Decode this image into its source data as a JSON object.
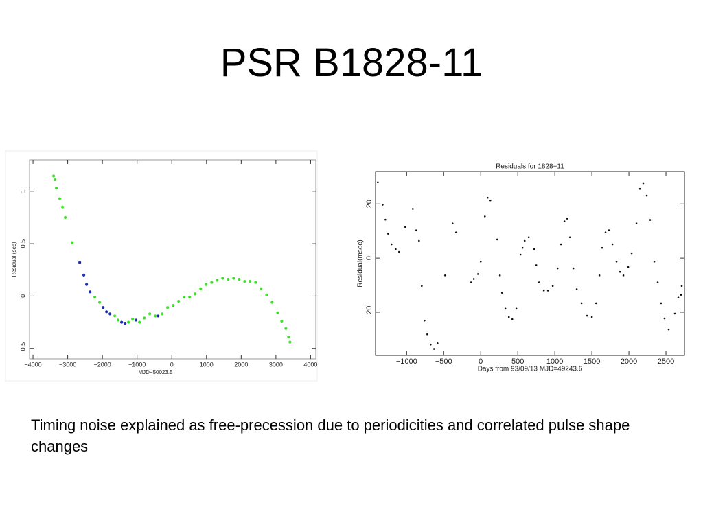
{
  "slide": {
    "title": "PSR B1828-11",
    "caption": "Timing noise explained as free-precession due to periodicities and correlated pulse shape changes"
  },
  "chart_data": [
    {
      "type": "scatter",
      "x_label": "MJD−50023.5",
      "y_label": "Residual (sec)",
      "xlim": [
        -4100,
        4150
      ],
      "ylim": [
        -0.6,
        1.3
      ],
      "xticks": [
        {
          "value": -4000,
          "label": "−4000"
        },
        {
          "value": -3000,
          "label": "−3000"
        },
        {
          "value": -2000,
          "label": "−2000"
        },
        {
          "value": -1000,
          "label": "−1000"
        },
        0,
        1000,
        2000,
        3000,
        4000
      ],
      "yticks": [
        {
          "value": -0.5,
          "label": "−0.5"
        },
        0,
        0.5,
        1
      ],
      "grid": false,
      "series": [
        {
          "color": "#3fe22a",
          "x": [
            -3406,
            -3366,
            -3327,
            -3228,
            -3149,
            -3069,
            -2871,
            -2218,
            -2079,
            -1644,
            -1545,
            -1248,
            -1129,
            -931,
            -792,
            -634,
            -475,
            -277,
            -119,
            40,
            198,
            356,
            515,
            673,
            832,
            990,
            1149,
            1307,
            1465,
            1624,
            1782,
            1941,
            2099,
            2257,
            2416,
            2574,
            2733,
            2891,
            3050,
            3168,
            3287,
            3366,
            3406
          ],
          "values": [
            1.146,
            1.11,
            1.03,
            0.93,
            0.85,
            0.75,
            0.51,
            -0.01,
            -0.06,
            -0.19,
            -0.23,
            -0.25,
            -0.22,
            -0.25,
            -0.21,
            -0.17,
            -0.19,
            -0.17,
            -0.11,
            -0.09,
            -0.05,
            -0.01,
            -0.01,
            0.02,
            0.07,
            0.11,
            0.13,
            0.15,
            0.17,
            0.16,
            0.17,
            0.16,
            0.14,
            0.14,
            0.13,
            0.07,
            0.01,
            -0.06,
            -0.16,
            -0.24,
            -0.31,
            -0.39,
            -0.44
          ]
        },
        {
          "color": "#1a2fb0",
          "x": [
            -2653,
            -2535,
            -2455,
            -2356,
            -1980,
            -1881,
            -1782,
            -1446,
            -1347,
            -1030,
            -396
          ],
          "values": [
            0.32,
            0.2,
            0.11,
            0.04,
            -0.11,
            -0.15,
            -0.17,
            -0.25,
            -0.26,
            -0.23,
            -0.19
          ]
        }
      ]
    },
    {
      "type": "scatter",
      "title": "Residuals for 1828−11",
      "x_label": "Days from 93/09/13    MJD=49243.6",
      "y_label": "Residual(msec)",
      "xlim": [
        -1420,
        2750
      ],
      "ylim": [
        -36,
        32
      ],
      "xticks": [
        {
          "value": -1000,
          "label": "−1000"
        },
        {
          "value": -500,
          "label": "−500"
        },
        0,
        500,
        1000,
        1500,
        2000,
        2500
      ],
      "yticks": [
        {
          "value": -20,
          "label": "−20"
        },
        0,
        20
      ],
      "grid": false,
      "series": [
        {
          "color": "#111111",
          "x": [
            -1389,
            -1324,
            -1287,
            -1250,
            -1204,
            -1148,
            -1102,
            -1019,
            -917,
            -870,
            -833,
            -796,
            -759,
            -722,
            -676,
            -630,
            -583,
            -481,
            -380,
            -333,
            -130,
            -93,
            -37,
            0,
            56,
            93,
            130,
            222,
            259,
            287,
            333,
            380,
            426,
            481,
            537,
            565,
            593,
            648,
            722,
            750,
            787,
            852,
            907,
            972,
            1037,
            1083,
            1130,
            1167,
            1204,
            1250,
            1296,
            1361,
            1435,
            1500,
            1556,
            1602,
            1639,
            1685,
            1731,
            1778,
            1833,
            1880,
            1926,
            1991,
            2037,
            2102,
            2148,
            2194,
            2241,
            2287,
            2343,
            2389,
            2435,
            2481,
            2537,
            2620,
            2667,
            2704,
            2713
          ],
          "values": [
            28,
            19.7,
            14.2,
            9,
            5.1,
            3.3,
            2.3,
            11.5,
            18.2,
            10.3,
            6.4,
            -10.3,
            -23.1,
            -28.2,
            -32,
            -33.6,
            -31.5,
            -6.4,
            12.8,
            9.5,
            -9,
            -7.7,
            -5.9,
            -1.3,
            15.4,
            22.3,
            21.3,
            6.9,
            -6.4,
            -12.8,
            -18.7,
            -21.8,
            -22.6,
            -18.7,
            1.3,
            3.8,
            6.4,
            7.7,
            3.3,
            -2.6,
            -9,
            -12,
            -12,
            -10.3,
            -3.8,
            5.1,
            13.6,
            14.6,
            7.7,
            -3.8,
            -11.5,
            -16.7,
            -21.3,
            -21.8,
            -16.7,
            -6.4,
            3.8,
            9.5,
            10.3,
            5.1,
            -1.3,
            -5.1,
            -6.4,
            -3.3,
            1.8,
            12.8,
            25.6,
            27.7,
            23.1,
            14.1,
            -1.3,
            -9,
            -16.7,
            -22.3,
            -26.4,
            -20.5,
            -14.6,
            -13.6,
            -10.3
          ]
        }
      ]
    }
  ]
}
